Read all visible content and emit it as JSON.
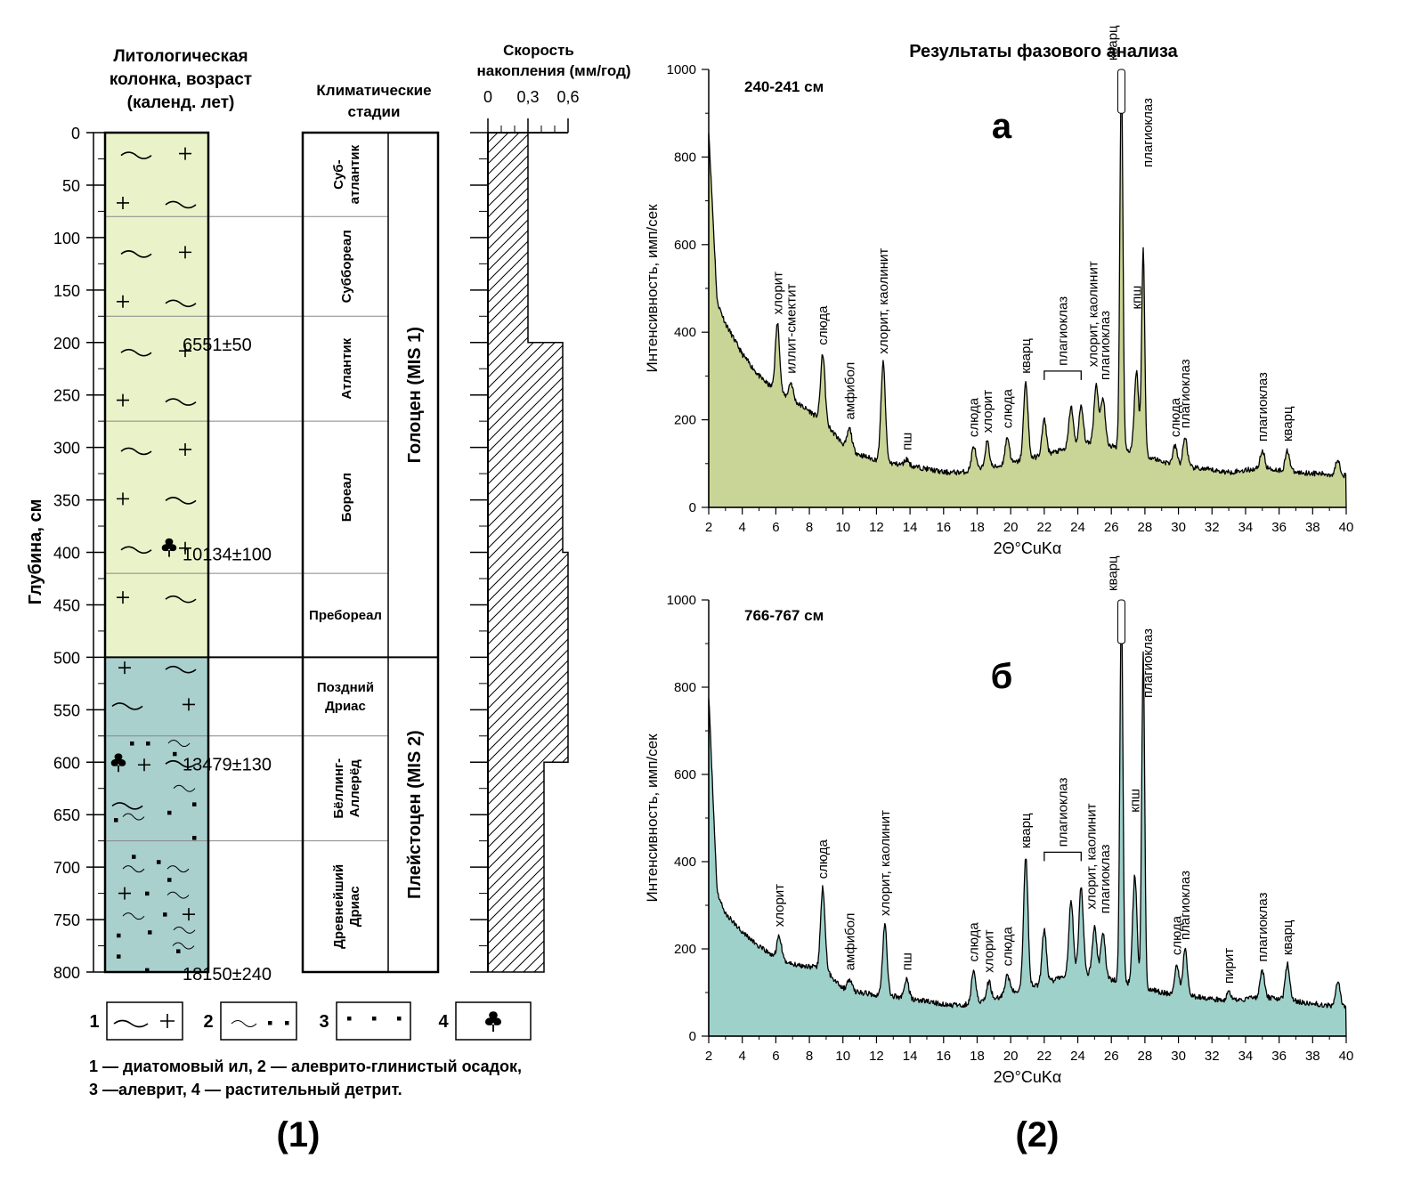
{
  "colors": {
    "lithology_holocene": "#eaf2c9",
    "lithology_pleistocene": "#a9d0cd",
    "spectrum_a_fill": "#c9d596",
    "spectrum_b_fill": "#9fd1cb",
    "line": "#000000"
  },
  "panel1": {
    "litho_title": [
      "Литологическая",
      "колонка, возраст",
      "(календ. лет)"
    ],
    "climate_title": [
      "Климатические",
      "стадии"
    ],
    "rate_title": [
      "Скорость",
      "накопления (мм/год)"
    ],
    "rate_ticks": [
      {
        "value": 0,
        "label": "0"
      },
      {
        "value": 0.3,
        "label": "0,3"
      },
      {
        "value": 0.6,
        "label": "0,6"
      }
    ],
    "depth_label": "Глубина, см",
    "depth_ticks": [
      0,
      50,
      100,
      150,
      200,
      250,
      300,
      350,
      400,
      450,
      500,
      550,
      600,
      650,
      700,
      750,
      800
    ],
    "depth_max": 800,
    "litho_boundaries_cm": [
      80,
      175,
      275,
      420,
      575,
      675
    ],
    "unit_boundary_cm": 500,
    "ages": [
      {
        "text": "6551±50",
        "depth": 200
      },
      {
        "text": "10134±100",
        "depth": 400
      },
      {
        "text": "13479±130",
        "depth": 600
      },
      {
        "text": "18150±240",
        "depth": 800
      }
    ],
    "stages": [
      {
        "name": "Суб-\nатлантик",
        "from": 0,
        "to": 80,
        "orient": "vertical"
      },
      {
        "name": "Суббореал",
        "from": 80,
        "to": 175,
        "orient": "vertical"
      },
      {
        "name": "Атлантик",
        "from": 175,
        "to": 275,
        "orient": "vertical"
      },
      {
        "name": "Бореал",
        "from": 275,
        "to": 420,
        "orient": "vertical"
      },
      {
        "name": "Пребореал",
        "from": 420,
        "to": 500,
        "orient": "horizontal"
      },
      {
        "name": "Поздний\nДриас",
        "from": 500,
        "to": 575,
        "orient": "horizontal"
      },
      {
        "name": "Бёллинг-\nАллерёд",
        "from": 575,
        "to": 675,
        "orient": "vertical"
      },
      {
        "name": "Древнейший\nДриас",
        "from": 675,
        "to": 800,
        "orient": "vertical"
      }
    ],
    "epochs": [
      {
        "name": "Голоцен (MIS 1)",
        "from": 0,
        "to": 500
      },
      {
        "name": "Плейстоцен (MIS 2)",
        "from": 500,
        "to": 800
      }
    ],
    "rate_profile": [
      {
        "from": 0,
        "to": 200,
        "rate": 0.3
      },
      {
        "from": 200,
        "to": 400,
        "rate": 0.56
      },
      {
        "from": 400,
        "to": 600,
        "rate": 0.6
      },
      {
        "from": 600,
        "to": 800,
        "rate": 0.42
      }
    ],
    "legend_numbers": [
      "1",
      "2",
      "3",
      "4"
    ],
    "legend_text": [
      "1 — диатомовый ил, 2 — алеврито-глинистый осадок,",
      "3 —алеврит, 4 — растительный детрит."
    ],
    "panel_label": "(1)"
  },
  "panel2": {
    "title": "Результаты фазового анализа",
    "panel_label": "(2)",
    "ylabel": "Интенсивность, имп/сек",
    "xlabel": "2Θ°CuKα",
    "x_ticks": [
      2,
      4,
      6,
      8,
      10,
      12,
      14,
      16,
      18,
      20,
      22,
      24,
      26,
      28,
      30,
      32,
      34,
      36,
      38,
      40
    ],
    "y_ticks": [
      0,
      200,
      400,
      600,
      800,
      1000
    ]
  },
  "chart_data": [
    {
      "type": "area",
      "sample": "240-241 см",
      "letter": "а",
      "xlabel": "2Θ°CuKα",
      "ylabel": "Интенсивность, имп/сек",
      "xlim": [
        2,
        40
      ],
      "ylim": [
        0,
        1000
      ],
      "background": [
        [
          2,
          860
        ],
        [
          2.5,
          470
        ],
        [
          3,
          420
        ],
        [
          4,
          350
        ],
        [
          5,
          300
        ],
        [
          6,
          265
        ],
        [
          7,
          245
        ],
        [
          8,
          220
        ],
        [
          9,
          190
        ],
        [
          10,
          145
        ],
        [
          11,
          120
        ],
        [
          12,
          108
        ],
        [
          13,
          100
        ],
        [
          14,
          95
        ],
        [
          15,
          88
        ],
        [
          16,
          80
        ],
        [
          17,
          80
        ],
        [
          18,
          85
        ],
        [
          19,
          92
        ],
        [
          20,
          100
        ],
        [
          21,
          110
        ],
        [
          22,
          120
        ],
        [
          23,
          130
        ],
        [
          24,
          140
        ],
        [
          25,
          150
        ],
        [
          26,
          140
        ],
        [
          27,
          130
        ],
        [
          28,
          120
        ],
        [
          29,
          105
        ],
        [
          30,
          95
        ],
        [
          31,
          90
        ],
        [
          32,
          85
        ],
        [
          33,
          80
        ],
        [
          34,
          85
        ],
        [
          35,
          90
        ],
        [
          36,
          85
        ],
        [
          37,
          80
        ],
        [
          38,
          78
        ],
        [
          39,
          75
        ],
        [
          40,
          72
        ]
      ],
      "peaks": [
        {
          "x": 6.1,
          "y": 420,
          "label": "хлорит"
        },
        {
          "x": 6.9,
          "y": 285,
          "label": "иллит-смектит"
        },
        {
          "x": 8.8,
          "y": 350,
          "label": "слюда"
        },
        {
          "x": 10.4,
          "y": 180,
          "label": "амфибол"
        },
        {
          "x": 12.4,
          "y": 330,
          "label": "хлорит, каолинит"
        },
        {
          "x": 13.8,
          "y": 110,
          "label": "пш"
        },
        {
          "x": 17.8,
          "y": 140,
          "label": "слюда"
        },
        {
          "x": 18.6,
          "y": 150,
          "label": "хлорит"
        },
        {
          "x": 19.8,
          "y": 160,
          "label": "слюда"
        },
        {
          "x": 20.9,
          "y": 285,
          "label": "кварц"
        },
        {
          "x": 22.0,
          "y": 200,
          "label": "плагиоклаз"
        },
        {
          "x": 23.6,
          "y": 230,
          "label": "плагиоклаз"
        },
        {
          "x": 24.2,
          "y": 230,
          "label": "плагиоклаз"
        },
        {
          "x": 25.1,
          "y": 280,
          "label": "хлорит, каолинит"
        },
        {
          "x": 25.5,
          "y": 250,
          "label": "плагиоклаз"
        },
        {
          "x": 26.6,
          "y": 1000,
          "label": "кварц"
        },
        {
          "x": 27.5,
          "y": 310,
          "label": "кпш"
        },
        {
          "x": 27.9,
          "y": 590,
          "label": "плагиоклаз"
        },
        {
          "x": 29.8,
          "y": 140,
          "label": "слюда"
        },
        {
          "x": 30.4,
          "y": 160,
          "label": "плагиоклаз"
        },
        {
          "x": 35.0,
          "y": 130,
          "label": "плагиоклаз"
        },
        {
          "x": 36.5,
          "y": 130,
          "label": "кварц"
        },
        {
          "x": 39.5,
          "y": 110,
          "label": ""
        }
      ]
    },
    {
      "type": "area",
      "sample": "766-767 см",
      "letter": "б",
      "xlabel": "2Θ°CuKα",
      "ylabel": "Интенсивность, имп/сек",
      "xlim": [
        2,
        40
      ],
      "ylim": [
        0,
        1000
      ],
      "background": [
        [
          2,
          780
        ],
        [
          2.5,
          330
        ],
        [
          3,
          280
        ],
        [
          4,
          240
        ],
        [
          5,
          205
        ],
        [
          6,
          180
        ],
        [
          7,
          165
        ],
        [
          8,
          160
        ],
        [
          9,
          150
        ],
        [
          10,
          110
        ],
        [
          11,
          100
        ],
        [
          12,
          95
        ],
        [
          13,
          92
        ],
        [
          14,
          85
        ],
        [
          15,
          80
        ],
        [
          16,
          72
        ],
        [
          17,
          70
        ],
        [
          18,
          78
        ],
        [
          19,
          85
        ],
        [
          20,
          100
        ],
        [
          21,
          110
        ],
        [
          22,
          120
        ],
        [
          23,
          135
        ],
        [
          24,
          145
        ],
        [
          25,
          140
        ],
        [
          26,
          130
        ],
        [
          27,
          120
        ],
        [
          28,
          110
        ],
        [
          29,
          100
        ],
        [
          30,
          95
        ],
        [
          31,
          90
        ],
        [
          32,
          85
        ],
        [
          33,
          80
        ],
        [
          34,
          85
        ],
        [
          35,
          90
        ],
        [
          36,
          85
        ],
        [
          37,
          80
        ],
        [
          38,
          75
        ],
        [
          39,
          70
        ],
        [
          40,
          65
        ]
      ],
      "peaks": [
        {
          "x": 6.2,
          "y": 230,
          "label": "хлорит"
        },
        {
          "x": 8.8,
          "y": 340,
          "label": "слюда"
        },
        {
          "x": 10.4,
          "y": 130,
          "label": "амфибол"
        },
        {
          "x": 12.5,
          "y": 255,
          "label": "хлорит, каолинит"
        },
        {
          "x": 13.8,
          "y": 130,
          "label": "пш"
        },
        {
          "x": 17.8,
          "y": 150,
          "label": "слюда"
        },
        {
          "x": 18.7,
          "y": 125,
          "label": "хлорит"
        },
        {
          "x": 19.8,
          "y": 140,
          "label": "слюда"
        },
        {
          "x": 20.9,
          "y": 410,
          "label": "кварц"
        },
        {
          "x": 22.0,
          "y": 245,
          "label": "плагиоклаз"
        },
        {
          "x": 23.6,
          "y": 310,
          "label": "плагиоклаз"
        },
        {
          "x": 24.2,
          "y": 340,
          "label": "плагиоклаз"
        },
        {
          "x": 25.0,
          "y": 250,
          "label": "хлорит, каолинит"
        },
        {
          "x": 25.5,
          "y": 240,
          "label": "плагиоклаз"
        },
        {
          "x": 26.6,
          "y": 1000,
          "label": "кварц"
        },
        {
          "x": 27.4,
          "y": 370,
          "label": "кпш"
        },
        {
          "x": 27.9,
          "y": 875,
          "label": "плагиоклаз"
        },
        {
          "x": 29.9,
          "y": 165,
          "label": "слюда"
        },
        {
          "x": 30.4,
          "y": 200,
          "label": "плагиоклаз"
        },
        {
          "x": 33.0,
          "y": 100,
          "label": "пирит"
        },
        {
          "x": 35.0,
          "y": 150,
          "label": "плагиоклаз"
        },
        {
          "x": 36.5,
          "y": 165,
          "label": "кварц"
        },
        {
          "x": 39.5,
          "y": 125,
          "label": ""
        }
      ]
    }
  ]
}
